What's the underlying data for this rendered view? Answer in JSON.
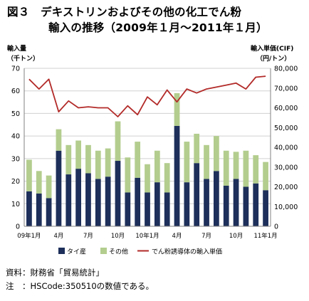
{
  "title_line1": "図３　デキストリンおよびその他の化工でん粉",
  "title_line2": "輸入の推移（2009年１月～2011年１月）",
  "chart_data": {
    "type": "bar+line",
    "left_axis_label": [
      "輸入量",
      "（千トン）"
    ],
    "right_axis_label": [
      "輸入単価(CIF)",
      "（円/トン）"
    ],
    "ylim_left": [
      0,
      70
    ],
    "yticks_left": [
      0,
      10,
      20,
      30,
      40,
      50,
      60,
      70
    ],
    "ylim_right": [
      0,
      80000
    ],
    "yticks_right": [
      "0",
      "10,000",
      "20,000",
      "30,000",
      "40,000",
      "50,000",
      "60,000",
      "70,000",
      "80,000"
    ],
    "x_tick_labels": [
      {
        "index": 0,
        "label": "09年1月"
      },
      {
        "index": 3,
        "label": "4月"
      },
      {
        "index": 6,
        "label": "7月"
      },
      {
        "index": 9,
        "label": "10月"
      },
      {
        "index": 12,
        "label": "10年1月"
      },
      {
        "index": 15,
        "label": "4月"
      },
      {
        "index": 18,
        "label": "7月"
      },
      {
        "index": 21,
        "label": "10月"
      },
      {
        "index": 24,
        "label": "11年1月"
      }
    ],
    "series": [
      {
        "name": "タイ産",
        "type": "stacked-bar",
        "color": "#1d2f5a",
        "values": [
          15.5,
          14.5,
          12.5,
          33.5,
          23.0,
          25.5,
          23.5,
          21.0,
          22.0,
          29.0,
          15.0,
          21.5,
          15.0,
          19.5,
          15.0,
          44.5,
          19.5,
          28.0,
          21.0,
          24.5,
          18.0,
          21.0,
          17.5,
          19.0,
          16.0
        ]
      },
      {
        "name": "その他",
        "type": "stacked-bar",
        "color": "#b3cd8e",
        "values": [
          14.0,
          10.0,
          10.0,
          9.5,
          13.0,
          12.5,
          12.5,
          12.5,
          12.5,
          17.5,
          15.5,
          16.0,
          12.5,
          14.0,
          13.0,
          14.5,
          18.0,
          13.0,
          15.0,
          15.5,
          15.5,
          12.0,
          16.0,
          12.5,
          12.5
        ]
      },
      {
        "name": "でん粉誘導体の輸入単価",
        "type": "line",
        "color": "#b22a28",
        "axis": "right",
        "values": [
          74500,
          69500,
          74500,
          58000,
          63500,
          60000,
          60500,
          60000,
          60000,
          55500,
          61000,
          56500,
          65500,
          61500,
          69000,
          63000,
          69500,
          67500,
          69500,
          70500,
          71500,
          72500,
          69500,
          75500,
          76000
        ]
      }
    ],
    "legend_position": "bottom"
  },
  "notes": {
    "source": "資料：財務省「貿易統計」",
    "note": "注　：HSCode:350510の数値である。"
  }
}
